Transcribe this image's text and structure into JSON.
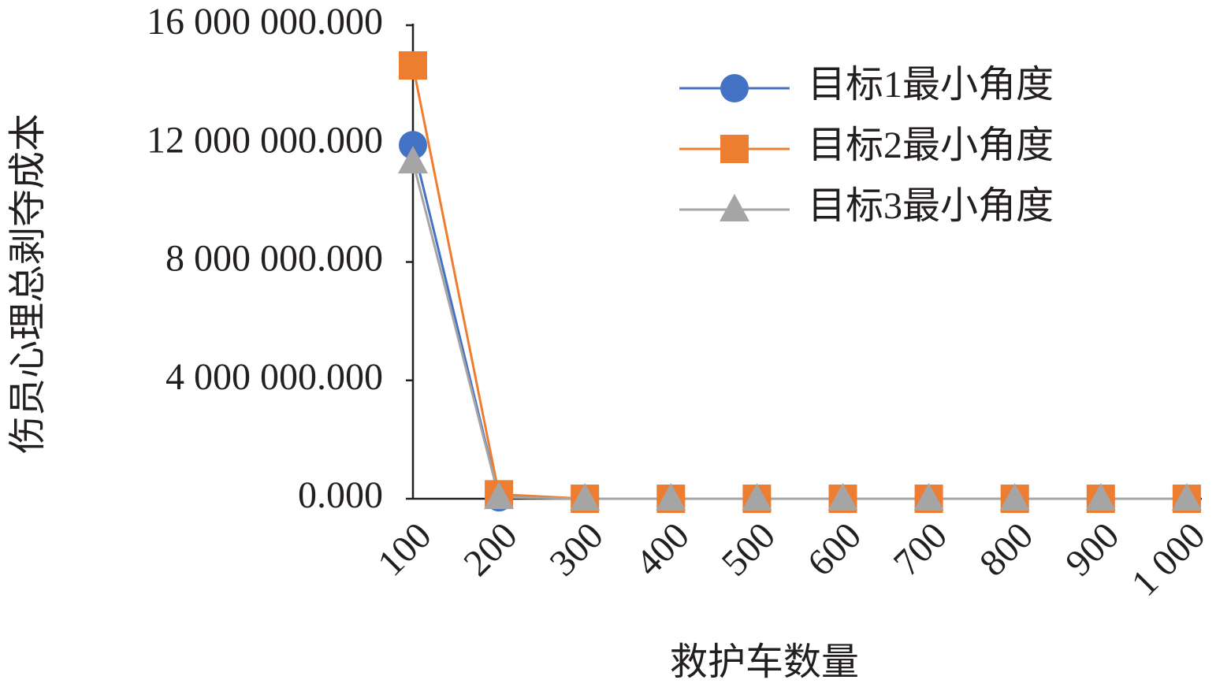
{
  "chart_data": {
    "type": "line",
    "x_label": "救护车数量",
    "y_label": "伤员心理总剥夺成本",
    "categories": [
      "100",
      "200",
      "300",
      "400",
      "500",
      "600",
      "700",
      "800",
      "900",
      "1 000"
    ],
    "series": [
      {
        "name": "目标1最小角度",
        "color": "#4472c4",
        "marker": "circle",
        "values": [
          11950000,
          50000,
          0,
          0,
          0,
          0,
          0,
          0,
          0,
          0
        ]
      },
      {
        "name": "目标2最小角度",
        "color": "#ed7d31",
        "marker": "square",
        "values": [
          14640000,
          150000,
          0,
          0,
          0,
          0,
          0,
          0,
          0,
          0
        ]
      },
      {
        "name": "目标3最小角度",
        "color": "#a5a5a5",
        "marker": "triangle",
        "values": [
          11390000,
          50000,
          0,
          0,
          0,
          0,
          0,
          0,
          0,
          0
        ]
      }
    ],
    "ylim": [
      0,
      16000000
    ],
    "yticks": [
      {
        "value": 0,
        "label": "0.000"
      },
      {
        "value": 4000000,
        "label": "4 000 000.000"
      },
      {
        "value": 8000000,
        "label": "8 000 000.000"
      },
      {
        "value": 12000000,
        "label": "12 000 000.000"
      },
      {
        "value": 16000000,
        "label": "16 000 000.000"
      }
    ],
    "legend": "upper right"
  }
}
